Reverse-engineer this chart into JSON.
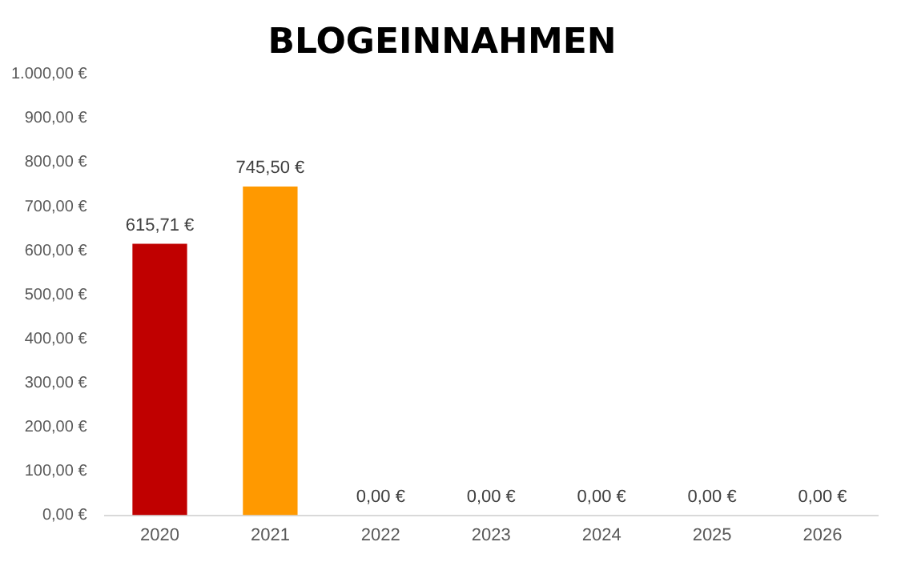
{
  "chart_data": {
    "type": "bar",
    "title": "BLOGEINNAHMEN",
    "categories": [
      "2020",
      "2021",
      "2022",
      "2023",
      "2024",
      "2025",
      "2026"
    ],
    "values": [
      615.71,
      745.5,
      0,
      0,
      0,
      0,
      0
    ],
    "colors": [
      "#c00000",
      "#ff9900",
      "#ff9900",
      "#ff9900",
      "#ff9900",
      "#ff9900",
      "#ff9900"
    ],
    "value_labels": [
      "615,71 €",
      "745,50 €",
      "0,00 €",
      "0,00 €",
      "0,00 €",
      "0,00 €",
      "0,00 €"
    ],
    "ylim": [
      0,
      1000
    ],
    "yticks": [
      {
        "value": 0,
        "label": "0,00 €"
      },
      {
        "value": 100,
        "label": "100,00 €"
      },
      {
        "value": 200,
        "label": "200,00 €"
      },
      {
        "value": 300,
        "label": "300,00 €"
      },
      {
        "value": 400,
        "label": "400,00 €"
      },
      {
        "value": 500,
        "label": "500,00 €"
      },
      {
        "value": 600,
        "label": "600,00 €"
      },
      {
        "value": 700,
        "label": "700,00 €"
      },
      {
        "value": 800,
        "label": "800,00 €"
      },
      {
        "value": 900,
        "label": "900,00 €"
      },
      {
        "value": 1000,
        "label": "1.000,00 €"
      }
    ],
    "grid": false,
    "legend": false
  }
}
